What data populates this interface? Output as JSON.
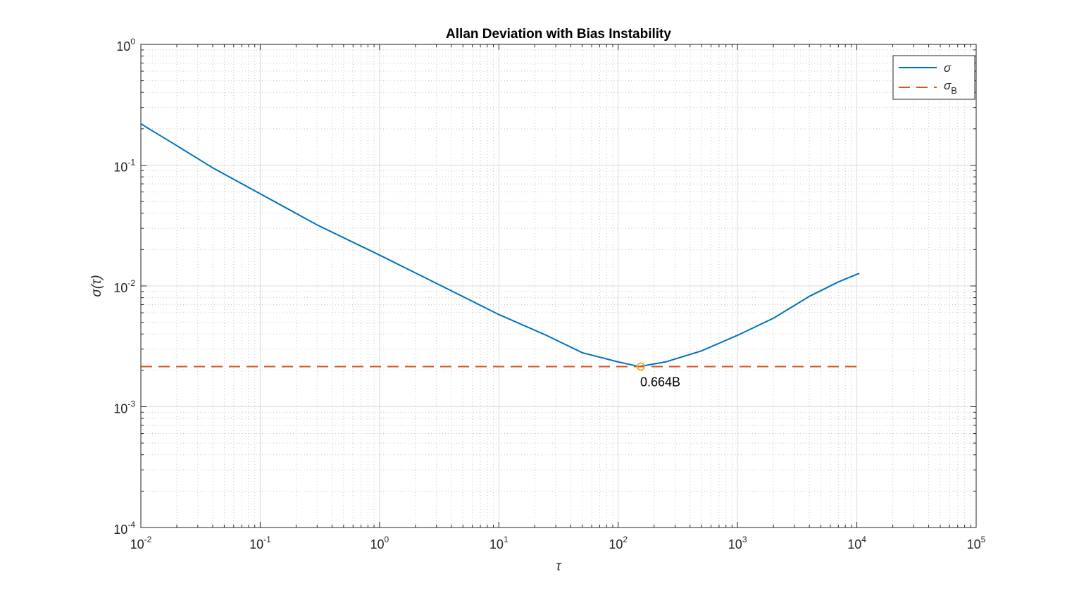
{
  "chart_data": {
    "type": "line",
    "title": "Allan Deviation with Bias Instability",
    "xlabel": "τ",
    "ylabel": "σ(τ)",
    "x_scale": "log",
    "y_scale": "log",
    "xlim": [
      0.01,
      100000
    ],
    "ylim": [
      0.0001,
      1
    ],
    "x_ticks": [
      {
        "base": "10",
        "exp": "-2",
        "value": 0.01
      },
      {
        "base": "10",
        "exp": "-1",
        "value": 0.1
      },
      {
        "base": "10",
        "exp": "0",
        "value": 1
      },
      {
        "base": "10",
        "exp": "1",
        "value": 10
      },
      {
        "base": "10",
        "exp": "2",
        "value": 100
      },
      {
        "base": "10",
        "exp": "3",
        "value": 1000
      },
      {
        "base": "10",
        "exp": "4",
        "value": 10000
      },
      {
        "base": "10",
        "exp": "5",
        "value": 100000
      }
    ],
    "y_ticks": [
      {
        "base": "10",
        "exp": "-4",
        "value": 0.0001
      },
      {
        "base": "10",
        "exp": "-3",
        "value": 0.001
      },
      {
        "base": "10",
        "exp": "-2",
        "value": 0.01
      },
      {
        "base": "10",
        "exp": "-1",
        "value": 0.1
      },
      {
        "base": "10",
        "exp": "0",
        "value": 1
      }
    ],
    "grid": true,
    "minor_grid": true,
    "legend_position": "top-right",
    "series": [
      {
        "name": "σ",
        "color": "#0072BD",
        "line_style": "solid",
        "x": [
          0.01,
          0.02,
          0.04,
          0.1,
          0.3,
          1,
          3,
          10,
          25,
          50,
          100,
          150,
          250,
          500,
          1000,
          2000,
          4000,
          7000,
          10000,
          10500
        ],
        "y": [
          0.22,
          0.145,
          0.095,
          0.058,
          0.032,
          0.018,
          0.0105,
          0.0058,
          0.0039,
          0.0028,
          0.00235,
          0.00215,
          0.00235,
          0.0029,
          0.0039,
          0.0054,
          0.0082,
          0.0108,
          0.0125,
          0.0127
        ]
      },
      {
        "name": "σB",
        "name_main": "σ",
        "name_sub": "B",
        "color": "#D95319",
        "line_style": "dashed",
        "x": [
          0.01,
          10000
        ],
        "y": [
          0.00215,
          0.00215
        ]
      }
    ],
    "annotations": [
      {
        "text": "0.664B",
        "x": 155,
        "y": 0.00215,
        "marker": "circle",
        "marker_color": "#EDB120"
      }
    ]
  }
}
